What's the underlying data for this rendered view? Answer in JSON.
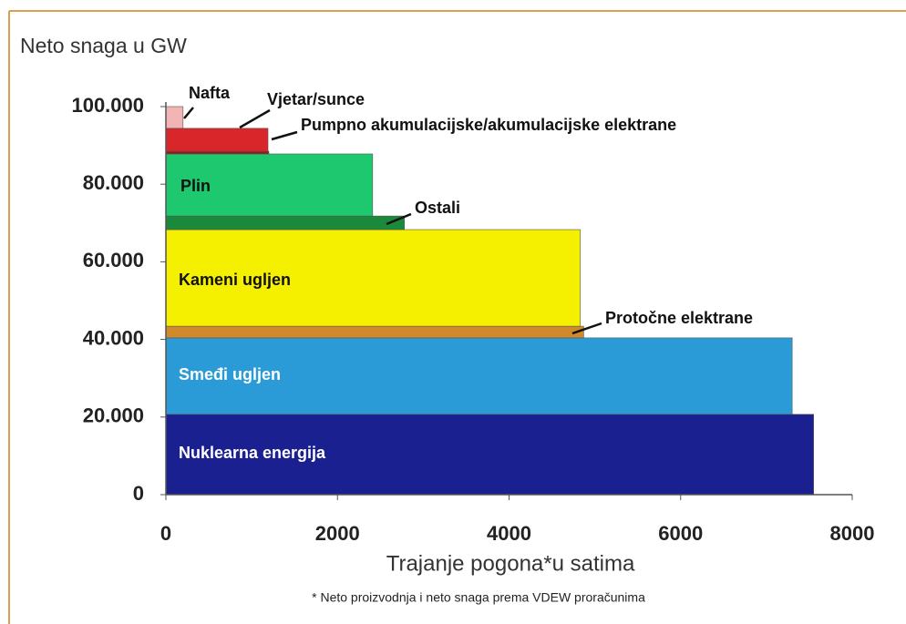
{
  "chart_data": {
    "type": "step-area",
    "y_label": "Neto snaga u GW",
    "x_label": "Trajanje pogona*u satima",
    "footnote": "* Neto proizvodnja i neto snaga prema VDEW proračunima",
    "series": [
      {
        "name": "Nuklearna energija",
        "color": "#1b2090",
        "capacity": 20700,
        "hours": 7550
      },
      {
        "name": "Smeđi ugljen",
        "color": "#2b9bd8",
        "capacity": 19700,
        "hours": 7300
      },
      {
        "name": "Protočne elektrane",
        "color": "#d08a2c",
        "capacity": 3000,
        "hours": 4870
      },
      {
        "name": "Kameni ugljen",
        "color": "#f5f000",
        "capacity": 24900,
        "hours": 4830
      },
      {
        "name": "Ostali",
        "color": "#1a8a3a",
        "capacity": 3500,
        "hours": 2780
      },
      {
        "name": "Plin",
        "color": "#1ec86e",
        "capacity": 16000,
        "hours": 2410
      },
      {
        "name": "Pumpno akumulacijske/akumulacijske elektrane",
        "color": "#a01414",
        "capacity": 700,
        "hours": 1200
      },
      {
        "name": "Vjetar/sunce",
        "color": "#d8262a",
        "capacity": 5900,
        "hours": 1190
      },
      {
        "name": "Nafta",
        "color": "#f2b4b4",
        "capacity": 5600,
        "hours": 200
      }
    ],
    "xlim": [
      0,
      8000
    ],
    "xticks": [
      0,
      2000,
      4000,
      6000,
      8000
    ],
    "ylim": [
      0,
      100000
    ],
    "yticks": [
      0,
      {
        "value": 20000,
        "label": "20.000"
      },
      {
        "value": 40000,
        "label": "40.000"
      },
      {
        "value": 60000,
        "label": "60.000"
      },
      {
        "value": 80000,
        "label": "80.000"
      },
      {
        "value": 100000,
        "label": "100.000"
      }
    ]
  }
}
